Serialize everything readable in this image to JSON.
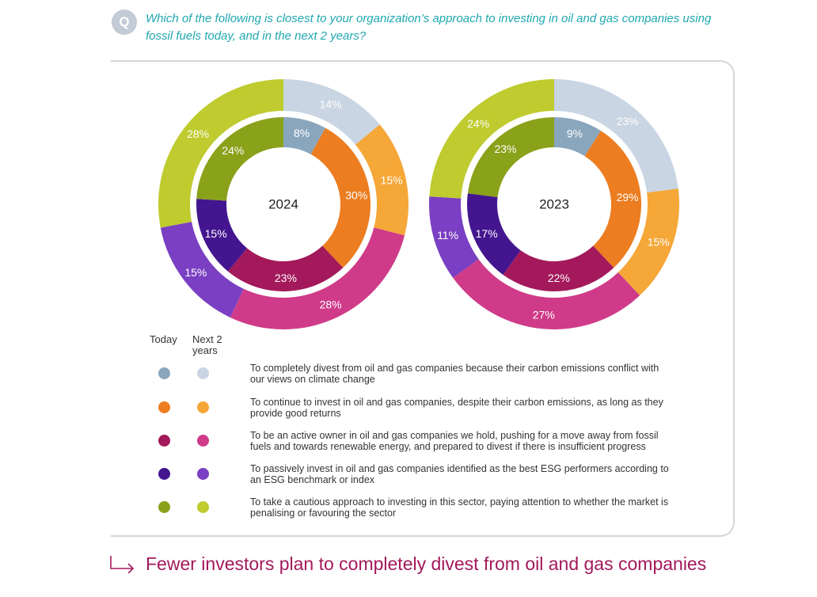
{
  "header": {
    "badge": "Q",
    "question": "Which of the following is closest to your organization’s approach to investing in oil and gas companies using fossil fuels today, and in the next 2 years?"
  },
  "chart_data": [
    {
      "type": "donut",
      "title": "2024",
      "series": [
        {
          "name": "Today",
          "ring": "inner",
          "values": [
            8,
            30,
            23,
            15,
            24
          ]
        },
        {
          "name": "Next 2 years",
          "ring": "outer",
          "values": [
            14,
            15,
            28,
            15,
            28
          ]
        }
      ]
    },
    {
      "type": "donut",
      "title": "2023",
      "series": [
        {
          "name": "Today",
          "ring": "inner",
          "values": [
            9,
            29,
            22,
            17,
            23
          ]
        },
        {
          "name": "Next 2 years",
          "ring": "outer",
          "values": [
            23,
            15,
            27,
            11,
            24
          ]
        }
      ]
    }
  ],
  "legend": {
    "today_label": "Today",
    "next_label": "Next 2 years",
    "items": [
      {
        "text": "To completely divest from oil and gas companies because their carbon emissions conflict with our views on climate change",
        "today_color": "#8aa6bd",
        "next_color": "#c9d5e2"
      },
      {
        "text": "To continue to invest in oil and gas companies, despite their carbon emissions, as long as they provide good returns",
        "today_color": "#ec7d20",
        "next_color": "#f5a738"
      },
      {
        "text": "To be an active owner in oil and gas companies we hold, pushing for a move away from fossil fuels and towards renewable energy, and prepared to divest if there is insufficient progress",
        "today_color": "#a3195b",
        "next_color": "#cf3b89"
      },
      {
        "text": "To passively invest in oil and gas companies identified as the best ESG performers according to an ESG benchmark or index",
        "today_color": "#43168f",
        "next_color": "#7a3fc2"
      },
      {
        "text": "To take a cautious approach to investing in this sector, paying attention to whether the market is penalising or favouring the sector",
        "today_color": "#8aa11a",
        "next_color": "#bfcb2e"
      }
    ]
  },
  "footer": {
    "text": "Fewer investors plan to completely divest from oil and gas companies",
    "color": "#a3195b"
  }
}
